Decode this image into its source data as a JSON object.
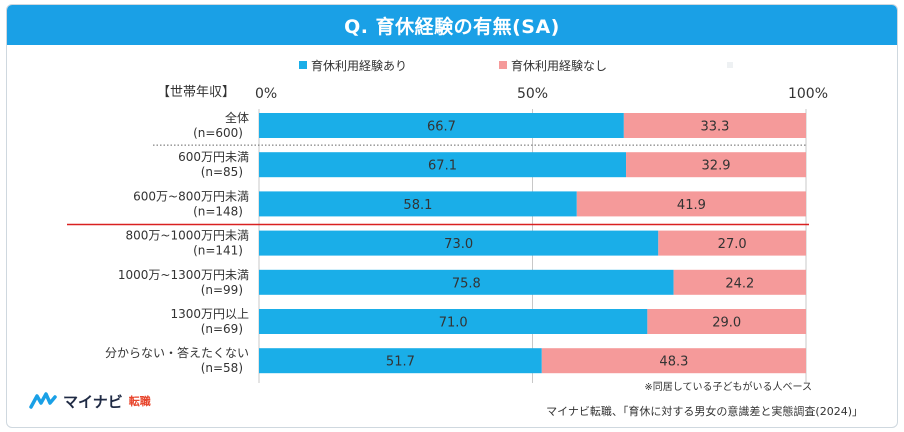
{
  "header": {
    "title": "Q. 育休経験の有無(SA)"
  },
  "chart_data": {
    "type": "bar",
    "orientation": "horizontal",
    "stacked": true,
    "axis_label": "【世帯年収】",
    "ticks": [
      {
        "value": 0,
        "label": "0%"
      },
      {
        "value": 50,
        "label": "50%"
      },
      {
        "value": 100,
        "label": "100%"
      }
    ],
    "xlim": [
      0,
      100
    ],
    "categories": [
      {
        "name": "全体",
        "n": "(n=600)"
      },
      {
        "name": "600万円未満",
        "n": "(n=85)"
      },
      {
        "name": "600万~800万円未満",
        "n": "(n=148)"
      },
      {
        "name": "800万~1000万円未満",
        "n": "(n=141)"
      },
      {
        "name": "1000万~1300万円未満",
        "n": "(n=99)"
      },
      {
        "name": "1300万円以上",
        "n": "(n=69)"
      },
      {
        "name": "分からない・答えたくない",
        "n": "(n=58)"
      }
    ],
    "series": [
      {
        "name": "育休利用経験あり",
        "color": "#1aaee8",
        "values": [
          66.7,
          67.1,
          58.1,
          73.0,
          75.8,
          71.0,
          51.7
        ]
      },
      {
        "name": "育休利用経験なし",
        "color": "#f59a9a",
        "values": [
          33.3,
          32.9,
          41.9,
          27.0,
          24.2,
          29.0,
          48.3
        ]
      }
    ],
    "note": "※同居している子どもがいる人ベース"
  },
  "footer": {
    "logo_text": "マイナビ",
    "logo_sub": "転職",
    "source": "マイナビ転職、「育休に対する男女の意識差と実態調査(2024)」"
  }
}
